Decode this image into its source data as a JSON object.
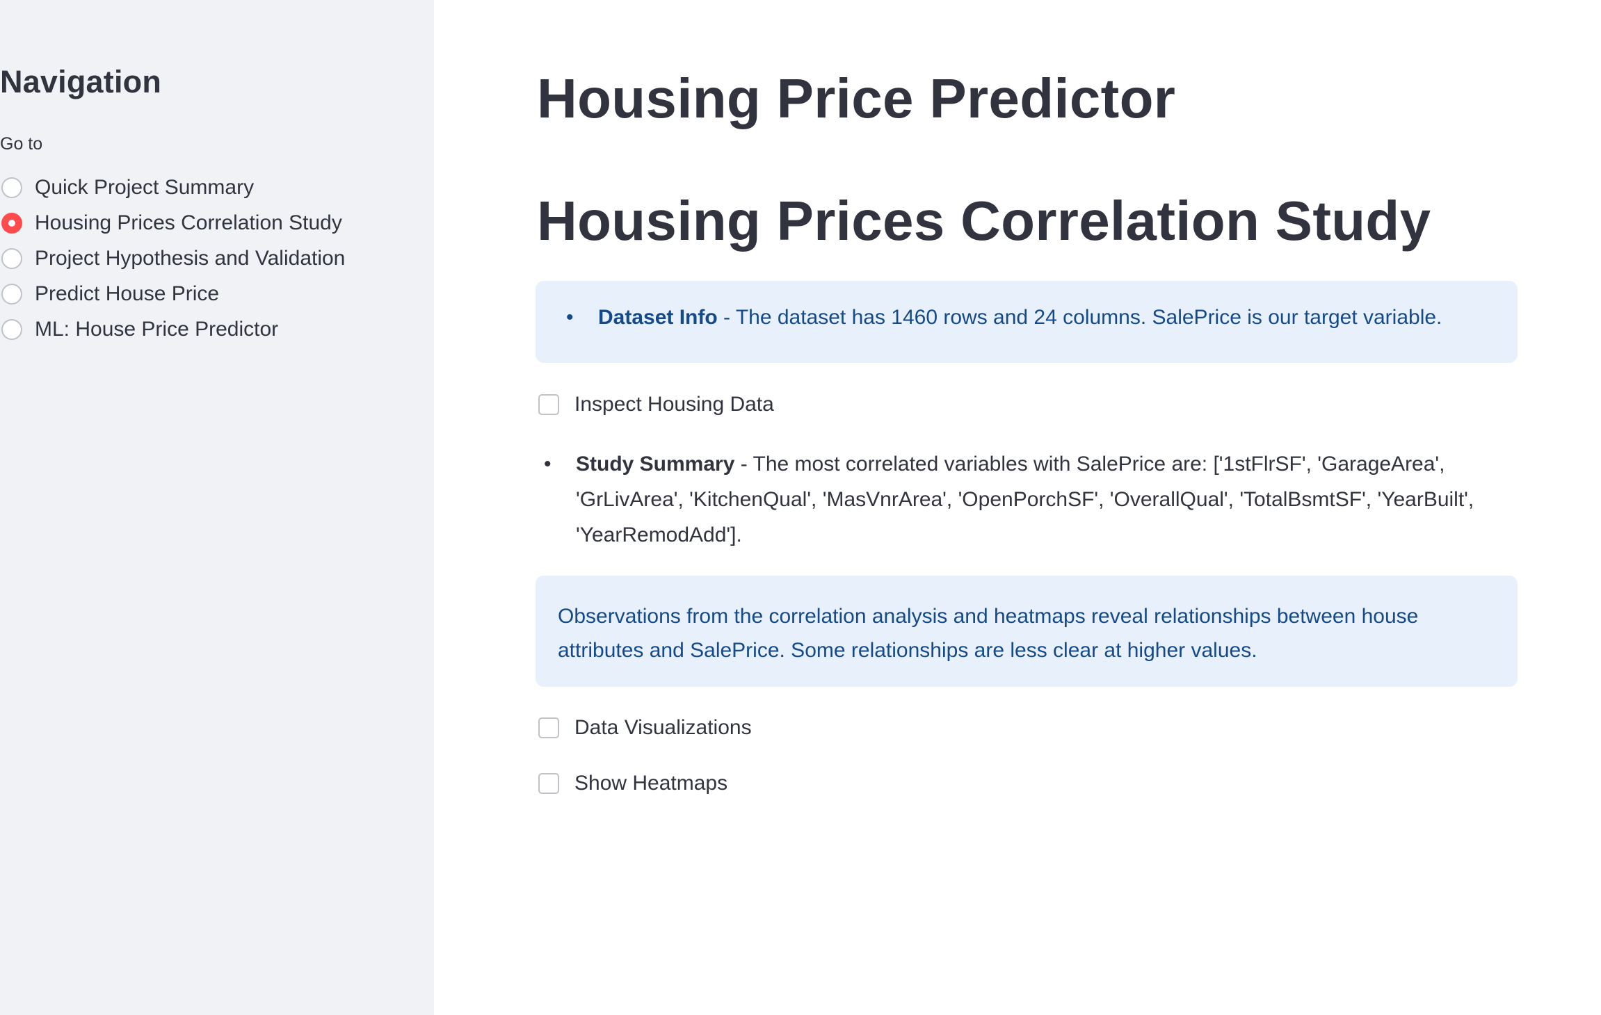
{
  "sidebar": {
    "title": "Navigation",
    "goto_label": "Go to",
    "options": [
      {
        "label": "Quick Project Summary",
        "selected": false
      },
      {
        "label": "Housing Prices Correlation Study",
        "selected": true
      },
      {
        "label": "Project Hypothesis and Validation",
        "selected": false
      },
      {
        "label": "Predict House Price",
        "selected": false
      },
      {
        "label": "ML: House Price Predictor",
        "selected": false
      }
    ]
  },
  "main": {
    "app_title": "Housing Price Predictor",
    "page_title": "Housing Prices Correlation Study",
    "dataset_info": {
      "label": "Dataset Info",
      "text": " - The dataset has 1460 rows and 24 columns. SalePrice is our target variable."
    },
    "checkboxes": {
      "inspect": {
        "label": "Inspect Housing Data",
        "checked": false
      },
      "visualizations": {
        "label": "Data Visualizations",
        "checked": false
      },
      "heatmaps": {
        "label": "Show Heatmaps",
        "checked": false
      }
    },
    "study_summary": {
      "label": "Study Summary",
      "text": " - The most correlated variables with SalePrice are: ['1stFlrSF', 'GarageArea', 'GrLivArea', 'KitchenQual', 'MasVnrArea', 'OpenPorchSF', 'OverallQual', 'TotalBsmtSF', 'YearBuilt', 'YearRemodAdd']."
    },
    "observations": "Observations from the correlation analysis and heatmaps reveal relationships between house attributes and SalePrice. Some relationships are less clear at higher values."
  },
  "colors": {
    "sidebar_bg": "#f0f2f6",
    "accent": "#ff4b4b",
    "info_bg": "#e8f0fb",
    "info_text": "#154a8a",
    "text": "#31333f"
  }
}
